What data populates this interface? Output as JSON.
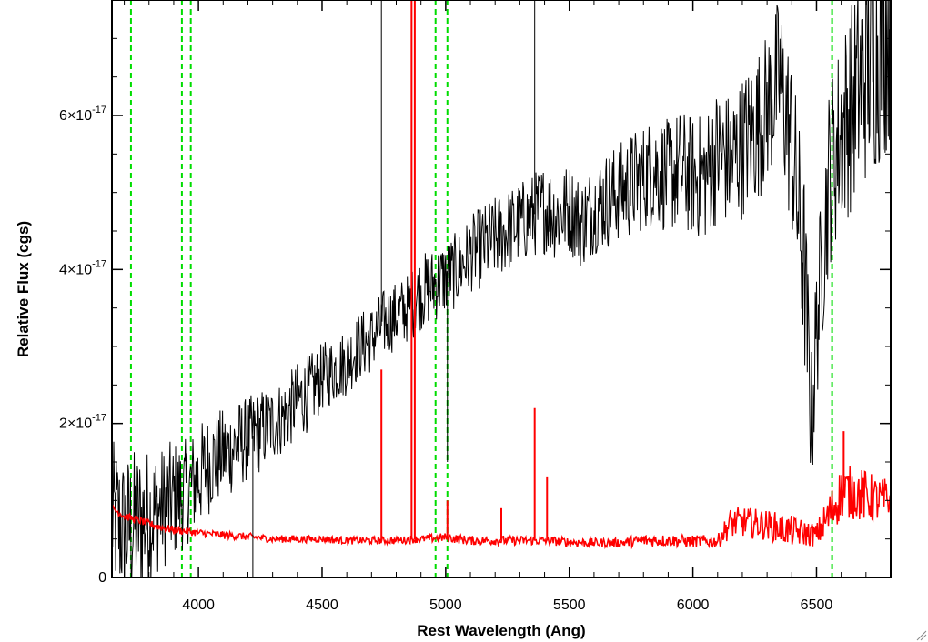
{
  "chart_data": {
    "type": "line",
    "title": "",
    "xlabel": "Rest Wavelength (Ang)",
    "ylabel": "Relative Flux (cgs)",
    "xlim": [
      3650,
      6800
    ],
    "ylim": [
      0,
      7.5e-17
    ],
    "x_ticks": [
      4000,
      4500,
      5000,
      5500,
      6000,
      6500
    ],
    "x_tick_labels": [
      "4000",
      "4500",
      "5000",
      "5500",
      "6000",
      "6500"
    ],
    "y_ticks": [
      {
        "value": 0,
        "mantissa": "0",
        "exponent": ""
      },
      {
        "value": 2e-17,
        "mantissa": "2×10",
        "exponent": "-17"
      },
      {
        "value": 4e-17,
        "mantissa": "4×10",
        "exponent": "-17"
      },
      {
        "value": 6e-17,
        "mantissa": "6×10",
        "exponent": "-17"
      }
    ],
    "series": [
      {
        "color": "#000000",
        "x": [
          3650,
          3700,
          3750,
          3800,
          3850,
          3900,
          3950,
          4000,
          4050,
          4100,
          4150,
          4200,
          4250,
          4300,
          4350,
          4400,
          4450,
          4500,
          4550,
          4600,
          4650,
          4700,
          4750,
          4800,
          4850,
          4900,
          4950,
          5000,
          5050,
          5100,
          5150,
          5200,
          5250,
          5300,
          5350,
          5400,
          5450,
          5500,
          5550,
          5600,
          5650,
          5700,
          5750,
          5800,
          5850,
          5900,
          5950,
          6000,
          6050,
          6100,
          6150,
          6200,
          6250,
          6300,
          6350,
          6400,
          6450,
          6480,
          6500,
          6550,
          6600,
          6650,
          6700,
          6750,
          6800
        ],
        "values": [
          8e-18,
          6e-18,
          7e-18,
          8e-18,
          9e-18,
          1e-17,
          1.1e-17,
          1.3e-17,
          1.5e-17,
          1.6e-17,
          1.7e-17,
          1.8e-17,
          1.9e-17,
          2e-17,
          2.1e-17,
          2.3e-17,
          2.4e-17,
          2.6e-17,
          2.7e-17,
          2.8e-17,
          3e-17,
          3.1e-17,
          3.3e-17,
          3.4e-17,
          3.5e-17,
          3.7e-17,
          3.8e-17,
          3.9e-17,
          4e-17,
          4.2e-17,
          4.3e-17,
          4.4e-17,
          4.5e-17,
          4.6e-17,
          4.7e-17,
          4.8e-17,
          4.7e-17,
          4.8e-17,
          4.6e-17,
          4.8e-17,
          4.9e-17,
          5e-17,
          5.1e-17,
          5.2e-17,
          5.3e-17,
          5.2e-17,
          5.3e-17,
          5.2e-17,
          5.2e-17,
          5.5e-17,
          5.4e-17,
          5.6e-17,
          5.8e-17,
          6.1e-17,
          6.5e-17,
          5.6e-17,
          4e-17,
          2e-17,
          3.2e-17,
          5.2e-17,
          5.8e-17,
          6.2e-17,
          6.6e-17,
          6.9e-17,
          7.2e-17
        ],
        "noise": [
          1e-17,
          1e-17,
          1e-17,
          9e-18,
          8e-18,
          8e-18,
          7e-18,
          7e-18,
          6.5e-18,
          6e-18,
          6e-18,
          5.5e-18,
          5.5e-18,
          5e-18,
          5e-18,
          5e-18,
          5e-18,
          4.5e-18,
          4.5e-18,
          4.5e-18,
          4.5e-18,
          4.5e-18,
          4.5e-18,
          4.5e-18,
          4.5e-18,
          5e-18,
          5e-18,
          5e-18,
          5e-18,
          5e-18,
          5.5e-18,
          5.5e-18,
          5.5e-18,
          5.5e-18,
          5.5e-18,
          6e-18,
          6e-18,
          6e-18,
          6e-18,
          6e-18,
          6.5e-18,
          6.5e-18,
          7e-18,
          7e-18,
          7.5e-18,
          7.5e-18,
          8e-18,
          8e-18,
          8.5e-18,
          9e-18,
          9e-18,
          9.5e-18,
          1e-17,
          1e-17,
          1.1e-17,
          1.2e-17,
          1.3e-17,
          1e-17,
          1e-17,
          1.2e-17,
          1.3e-17,
          1.4e-17,
          1.5e-17,
          1.6e-17,
          1.6e-17
        ]
      },
      {
        "color": "#ff0000",
        "x": [
          3650,
          3700,
          3750,
          3800,
          3850,
          3900,
          3950,
          4000,
          4100,
          4200,
          4300,
          4400,
          4500,
          4600,
          4700,
          4800,
          4900,
          5000,
          5100,
          5200,
          5300,
          5400,
          5500,
          5600,
          5700,
          5800,
          5900,
          6000,
          6100,
          6150,
          6200,
          6300,
          6400,
          6500,
          6550,
          6600,
          6650,
          6700,
          6750,
          6800
        ],
        "values": [
          9e-18,
          8e-18,
          7.5e-18,
          7e-18,
          6.5e-18,
          6.2e-18,
          6e-18,
          5.8e-18,
          5.5e-18,
          5.3e-18,
          5e-18,
          5e-18,
          5e-18,
          4.8e-18,
          4.8e-18,
          4.8e-18,
          5e-18,
          5.2e-18,
          4.8e-18,
          4.8e-18,
          4.8e-18,
          4.8e-18,
          4.6e-18,
          4.5e-18,
          4.5e-18,
          4.8e-18,
          4.8e-18,
          4.7e-18,
          4.7e-18,
          7e-18,
          7.2e-18,
          6.8e-18,
          6e-18,
          5.5e-18,
          8e-18,
          1.1e-17,
          1.1e-17,
          1.05e-17,
          1e-17,
          1e-17
        ],
        "noise": [
          5e-19,
          5e-19,
          5e-19,
          5e-19,
          5e-19,
          5e-19,
          5e-19,
          5e-19,
          5e-19,
          5e-19,
          5e-19,
          5e-19,
          5e-19,
          5e-19,
          5e-19,
          5e-19,
          5e-19,
          6e-19,
          6e-19,
          6e-19,
          6e-19,
          6e-19,
          6e-19,
          6e-19,
          6e-19,
          8e-19,
          8e-19,
          8e-19,
          8e-19,
          2e-18,
          2e-18,
          2e-18,
          2e-18,
          1.5e-18,
          3e-18,
          3.5e-18,
          3.5e-18,
          3.5e-18,
          3e-18,
          3e-18
        ]
      }
    ],
    "emission_spikes": [
      {
        "series": "#ff0000",
        "x": 4740,
        "peak": 2.7e-17
      },
      {
        "series": "#ff0000",
        "x": 4862,
        "peak": 7.6e-17
      },
      {
        "series": "#ff0000",
        "x": 4875,
        "peak": 7.6e-17
      },
      {
        "series": "#ff0000",
        "x": 5007,
        "peak": 1e-17
      },
      {
        "series": "#ff0000",
        "x": 5225,
        "peak": 9e-18
      },
      {
        "series": "#ff0000",
        "x": 5360,
        "peak": 2.2e-17
      },
      {
        "series": "#ff0000",
        "x": 5410,
        "peak": 1.3e-17
      },
      {
        "series": "#ff0000",
        "x": 6610,
        "peak": 1.9e-17
      },
      {
        "series": "#000000",
        "x": 4220,
        "peak": 0.0
      },
      {
        "series": "#000000",
        "x": 4740,
        "peak": 7.6e-17
      },
      {
        "series": "#000000",
        "x": 5360,
        "peak": 7.6e-17
      },
      {
        "series": "#000000",
        "x": 5007,
        "peak": 1.5e-17
      }
    ],
    "reference_lines": {
      "color": "#00dd00",
      "style": "dashed",
      "x": [
        3727,
        3933,
        3969,
        4959,
        5007,
        6563
      ]
    }
  }
}
